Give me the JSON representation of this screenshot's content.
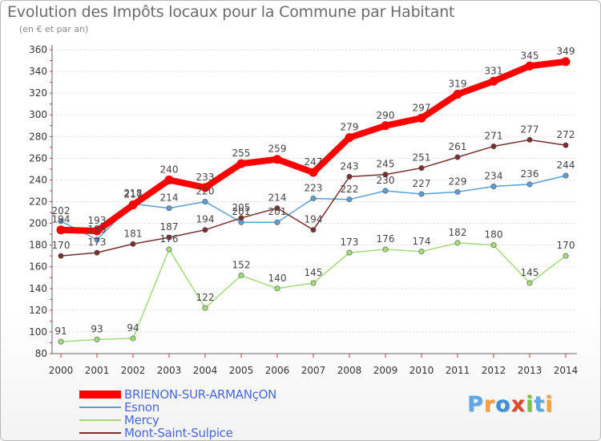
{
  "chart_data": {
    "type": "line",
    "title": "Evolution des Impôts locaux pour la Commune par Habitant",
    "subtitle": "(en € et par an)",
    "xlabel": "",
    "ylabel": "",
    "ylim": [
      80,
      360
    ],
    "yticks": [
      80,
      100,
      120,
      140,
      160,
      180,
      200,
      220,
      240,
      260,
      280,
      300,
      320,
      340,
      360
    ],
    "x": [
      "2000",
      "2001",
      "2002",
      "2003",
      "2004",
      "2005",
      "2006",
      "2007",
      "2008",
      "2009",
      "2010",
      "2011",
      "2012",
      "2013",
      "2014"
    ],
    "grid": "horizontal",
    "legend_position": "bottom-left",
    "series": [
      {
        "name": "Esnon",
        "color": "#5a9fd4",
        "width": 1.5,
        "values": [
          202,
          185,
          218,
          214,
          220,
          201,
          201,
          223,
          222,
          230,
          227,
          229,
          234,
          236,
          244
        ]
      },
      {
        "name": "Mercy",
        "color": "#a2dc7a",
        "width": 1.5,
        "values": [
          91,
          93,
          94,
          176,
          122,
          152,
          140,
          145,
          173,
          176,
          174,
          182,
          180,
          145,
          170
        ]
      },
      {
        "name": "Mont-Saint-Sulpice",
        "color": "#7a2e2e",
        "width": 1.5,
        "values": [
          170,
          173,
          181,
          187,
          194,
          205,
          214,
          194,
          243,
          245,
          251,
          261,
          271,
          277,
          272
        ]
      },
      {
        "name": "BRIENON-SUR-ARMANçON",
        "color": "#ff0000",
        "width": 8,
        "values": [
          194,
          193,
          217,
          240,
          233,
          255,
          259,
          247,
          279,
          290,
          297,
          319,
          331,
          345,
          349
        ]
      }
    ],
    "legend": [
      "BRIENON-SUR-ARMANçON",
      "Esnon",
      "Mercy",
      "Mont-Saint-Sulpice"
    ]
  },
  "logo": {
    "text": "Proxiti",
    "letters": [
      "P",
      "r",
      "o",
      "x",
      "i",
      "t",
      "i"
    ],
    "colors": [
      "#5aa9e6",
      "#f6a23a",
      "#3c8fd8",
      "#e0472b",
      "#7cc242",
      "#5aa9e6",
      "#f6a23a"
    ]
  }
}
